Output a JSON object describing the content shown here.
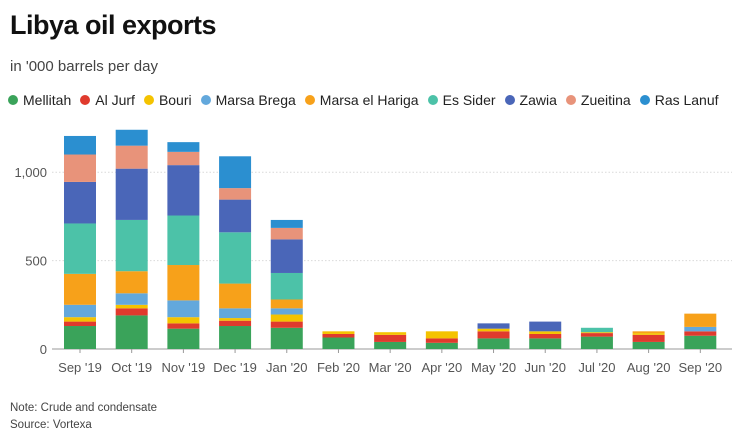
{
  "header": {
    "title": "Libya oil exports",
    "subtitle": "in '000 barrels per day"
  },
  "footer": {
    "note": "Note: Crude and condensate",
    "source": "Source: Vortexa"
  },
  "colors": {
    "Mellitah": "#3aa35a",
    "Al Jurf": "#e03a2d",
    "Bouri": "#f4c300",
    "Marsa Brega": "#63a8dc",
    "Marsa el Hariga": "#f7a11a",
    "Es Sider": "#4cc2a8",
    "Zawia": "#4a66b8",
    "Zueitina": "#e8937a",
    "Ras Lanuf": "#2b8fd0",
    "grid": "#d9d9d9",
    "axis_text": "#555555"
  },
  "chart_data": {
    "type": "bar",
    "stacked": true,
    "title": "Libya oil exports",
    "ylabel": "in '000 barrels per day",
    "xlabel": "",
    "ylim": [
      0,
      1250
    ],
    "yticks": [
      0,
      500,
      1000
    ],
    "ytick_labels": [
      "0",
      "500",
      "1,000"
    ],
    "categories": [
      "Sep '19",
      "Oct '19",
      "Nov '19",
      "Dec '19",
      "Jan '20",
      "Feb '20",
      "Mar '20",
      "Apr '20",
      "May '20",
      "Jun '20",
      "Jul '20",
      "Aug '20",
      "Sep '20"
    ],
    "series": [
      {
        "name": "Mellitah",
        "values": [
          130,
          190,
          115,
          130,
          120,
          65,
          40,
          35,
          60,
          60,
          70,
          40,
          75
        ]
      },
      {
        "name": "Al Jurf",
        "values": [
          25,
          40,
          30,
          30,
          35,
          20,
          40,
          25,
          40,
          25,
          20,
          40,
          25
        ]
      },
      {
        "name": "Bouri",
        "values": [
          25,
          20,
          35,
          15,
          40,
          15,
          15,
          40,
          15,
          15,
          5,
          10,
          0
        ]
      },
      {
        "name": "Marsa Brega",
        "values": [
          70,
          65,
          95,
          55,
          35,
          0,
          0,
          0,
          0,
          0,
          0,
          0,
          25
        ]
      },
      {
        "name": "Marsa el Hariga",
        "values": [
          175,
          125,
          200,
          140,
          50,
          0,
          0,
          0,
          0,
          0,
          0,
          10,
          75
        ]
      },
      {
        "name": "Es Sider",
        "values": [
          285,
          290,
          280,
          290,
          150,
          0,
          0,
          0,
          0,
          0,
          25,
          0,
          0
        ]
      },
      {
        "name": "Zawia",
        "values": [
          235,
          290,
          285,
          185,
          190,
          0,
          0,
          0,
          30,
          55,
          0,
          0,
          0
        ]
      },
      {
        "name": "Zueitina",
        "values": [
          155,
          130,
          75,
          65,
          65,
          0,
          0,
          0,
          0,
          0,
          0,
          0,
          0
        ]
      },
      {
        "name": "Ras Lanuf",
        "values": [
          105,
          90,
          55,
          180,
          45,
          0,
          0,
          0,
          0,
          0,
          0,
          0,
          0
        ]
      }
    ]
  }
}
